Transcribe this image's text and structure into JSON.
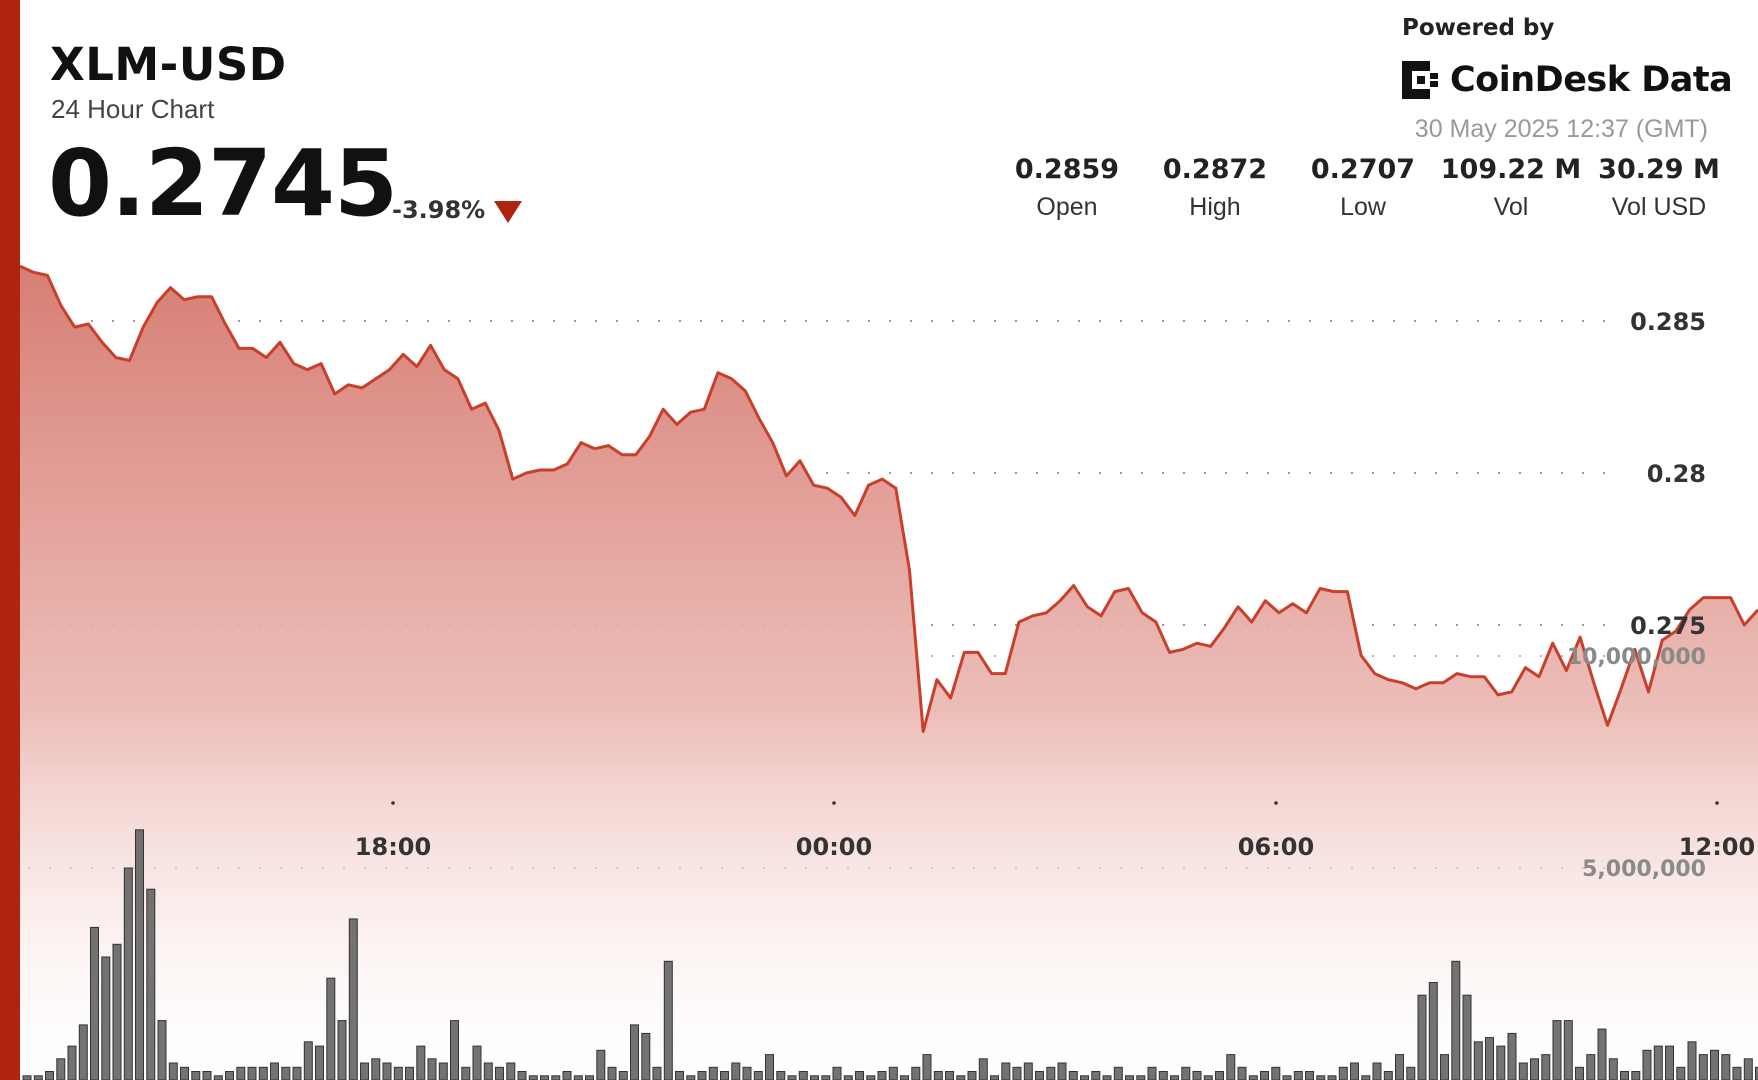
{
  "header": {
    "symbol": "XLM-USD",
    "subtitle": "24 Hour Chart",
    "price": "0.2745",
    "change": "-3.98%",
    "powered_by": "Powered by",
    "brand": "CoinDesk Data",
    "timestamp": "30 May 2025 12:37 (GMT)"
  },
  "stats": [
    {
      "value": "0.2859",
      "label": "Open"
    },
    {
      "value": "0.2872",
      "label": "High"
    },
    {
      "value": "0.2707",
      "label": "Low"
    },
    {
      "value": "109.22 M",
      "label": "Vol"
    },
    {
      "value": "30.29 M",
      "label": "Vol USD"
    }
  ],
  "icons": {
    "change_direction": "down-triangle-icon",
    "brand_logo": "coindesk-logo-icon"
  },
  "colors": {
    "accent": "#b0230f",
    "line": "#c8402c",
    "area_top": "#d77e74",
    "volume_bar": "#5a5a5a"
  },
  "chart_data": [
    {
      "type": "area",
      "title": "",
      "xlabel": "",
      "ylabel": "",
      "x_ticks": [
        "18:00",
        "00:00",
        "06:00",
        "12:00"
      ],
      "y_ticks": [
        0.285,
        0.28,
        0.275
      ],
      "y_tick_labels": [
        "0.285",
        "0.28",
        "0.275"
      ],
      "ylim": [
        0.2695,
        0.2875
      ],
      "grid": true,
      "series": [
        {
          "values": [
            0.2868,
            0.2866,
            0.2865,
            0.2855,
            0.2848,
            0.2849,
            0.2843,
            0.2838,
            0.2837,
            0.2848,
            0.2856,
            0.2861,
            0.2857,
            0.2858,
            0.2858,
            0.2849,
            0.2841,
            0.2841,
            0.2838,
            0.2843,
            0.2836,
            0.2834,
            0.2836,
            0.2826,
            0.2829,
            0.2828,
            0.2831,
            0.2834,
            0.2839,
            0.2835,
            0.2842,
            0.2834,
            0.2831,
            0.2821,
            0.2823,
            0.2814,
            0.2798,
            0.28,
            0.2801,
            0.2801,
            0.2803,
            0.281,
            0.2808,
            0.2809,
            0.2806,
            0.2806,
            0.2812,
            0.2821,
            0.2816,
            0.282,
            0.2821,
            0.2833,
            0.2831,
            0.2827,
            0.2818,
            0.281,
            0.2799,
            0.2804,
            0.2796,
            0.2795,
            0.2792,
            0.2786,
            0.2796,
            0.2798,
            0.2795,
            0.2768,
            0.2715,
            0.2732,
            0.2726,
            0.2741,
            0.2741,
            0.2734,
            0.2734,
            0.2751,
            0.2753,
            0.2754,
            0.2758,
            0.2763,
            0.2756,
            0.2753,
            0.2761,
            0.2762,
            0.2754,
            0.2751,
            0.2741,
            0.2742,
            0.2744,
            0.2743,
            0.2749,
            0.2756,
            0.2751,
            0.2758,
            0.2754,
            0.2757,
            0.2754,
            0.2762,
            0.2761,
            0.2761,
            0.274,
            0.2734,
            0.2732,
            0.2731,
            0.2729,
            0.2731,
            0.2731,
            0.2734,
            0.2733,
            0.2733,
            0.2727,
            0.2728,
            0.2736,
            0.2733,
            0.2744,
            0.2735,
            0.2746,
            0.2731,
            0.2717,
            0.2729,
            0.2742,
            0.2728,
            0.2745,
            0.2748,
            0.2755,
            0.2759,
            0.2759,
            0.2759,
            0.275,
            0.2755
          ]
        }
      ]
    },
    {
      "type": "bar",
      "title": "",
      "xlabel": "",
      "ylabel": "",
      "y_ticks": [
        5000000,
        10000000
      ],
      "y_tick_labels": [
        "5,000,000",
        "10,000,000"
      ],
      "ylim": [
        0,
        15200000
      ],
      "grid": false,
      "series": [
        {
          "values": [
            100000,
            100000,
            200000,
            500000,
            800000,
            1300000,
            3600000,
            2900000,
            3200000,
            5000000,
            5900000,
            4500000,
            1400000,
            400000,
            300000,
            200000,
            200000,
            100000,
            200000,
            300000,
            300000,
            300000,
            400000,
            300000,
            300000,
            900000,
            800000,
            2400000,
            1400000,
            3800000,
            400000,
            500000,
            400000,
            300000,
            300000,
            800000,
            500000,
            400000,
            1400000,
            300000,
            800000,
            400000,
            300000,
            400000,
            200000,
            100000,
            100000,
            100000,
            200000,
            100000,
            100000,
            700000,
            300000,
            200000,
            1300000,
            1100000,
            300000,
            2800000,
            200000,
            100000,
            200000,
            300000,
            200000,
            400000,
            300000,
            200000,
            600000,
            200000,
            100000,
            200000,
            100000,
            100000,
            300000,
            100000,
            200000,
            100000,
            200000,
            300000,
            100000,
            300000,
            600000,
            200000,
            200000,
            100000,
            200000,
            500000,
            100000,
            400000,
            300000,
            400000,
            200000,
            300000,
            400000,
            200000,
            100000,
            200000,
            100000,
            300000,
            100000,
            100000,
            300000,
            200000,
            100000,
            300000,
            200000,
            100000,
            200000,
            600000,
            300000,
            100000,
            200000,
            300000,
            100000,
            200000,
            200000,
            100000,
            100000,
            300000,
            400000,
            100000,
            400000,
            200000,
            600000,
            300000,
            2000000,
            2300000,
            600000,
            2800000,
            2000000,
            900000,
            1000000,
            800000,
            1100000,
            400000,
            500000,
            600000,
            1400000,
            1400000,
            300000,
            600000,
            1200000,
            500000,
            200000,
            200000,
            700000,
            800000,
            800000,
            300000,
            900000,
            600000,
            700000,
            600000,
            300000,
            500000,
            300000,
            200000,
            200000,
            300000,
            400000,
            300000,
            300000,
            500000,
            400000,
            300000,
            400000,
            400000,
            800000,
            700000,
            400000,
            600000,
            300000,
            200000,
            300000,
            100000,
            200000,
            500000,
            200000,
            300000,
            300000,
            400000,
            300000,
            300000,
            200000,
            200000,
            300000,
            200000,
            100000,
            600000,
            400000,
            1300000,
            600000,
            500000,
            400000
          ]
        }
      ]
    }
  ]
}
